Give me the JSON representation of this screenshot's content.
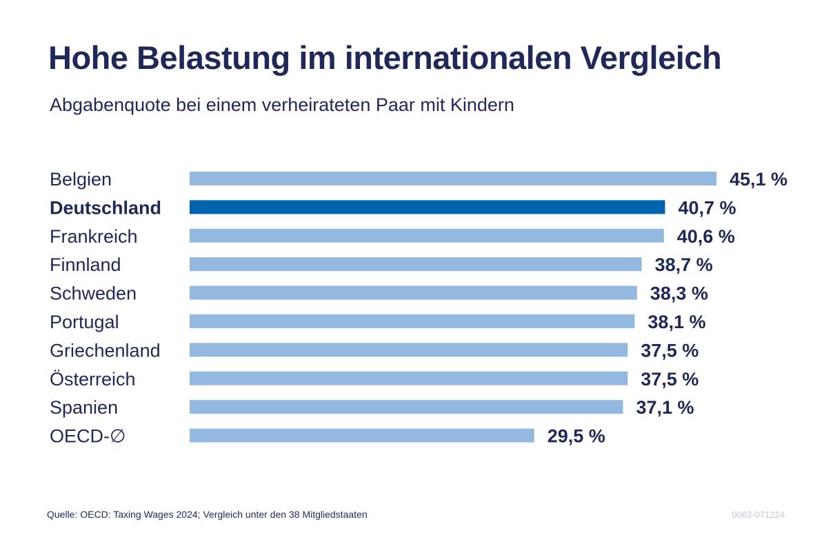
{
  "chart_data": {
    "type": "bar",
    "orientation": "horizontal",
    "title": "Hohe Belastung im internationalen Vergleich",
    "subtitle": "Abgabenquote bei einem verheirateten Paar mit Kindern",
    "categories": [
      "Belgien",
      "Deutschland",
      "Frankreich",
      "Finnland",
      "Schweden",
      "Portugal",
      "Griechenland",
      "Österreich",
      "Spanien",
      "OECD-∅"
    ],
    "values": [
      45.1,
      40.7,
      40.6,
      38.7,
      38.3,
      38.1,
      37.5,
      37.5,
      37.1,
      29.5
    ],
    "value_labels": [
      "45,1 %",
      "40,7 %",
      "40,6 %",
      "38,7 %",
      "38,3 %",
      "38,1 %",
      "37,5 %",
      "37,5 %",
      "37,1 %",
      "29,5 %"
    ],
    "highlight": "Deutschland",
    "colors": {
      "bar": "#94b9e0",
      "highlight": "#0063ad",
      "text": "#1f2858"
    },
    "grid": false,
    "legend": "none"
  },
  "source": "Quelle: OECD: Taxing Wages 2024; Vergleich unter den 38 Mitgliedstaaten",
  "code": "0063-071224"
}
